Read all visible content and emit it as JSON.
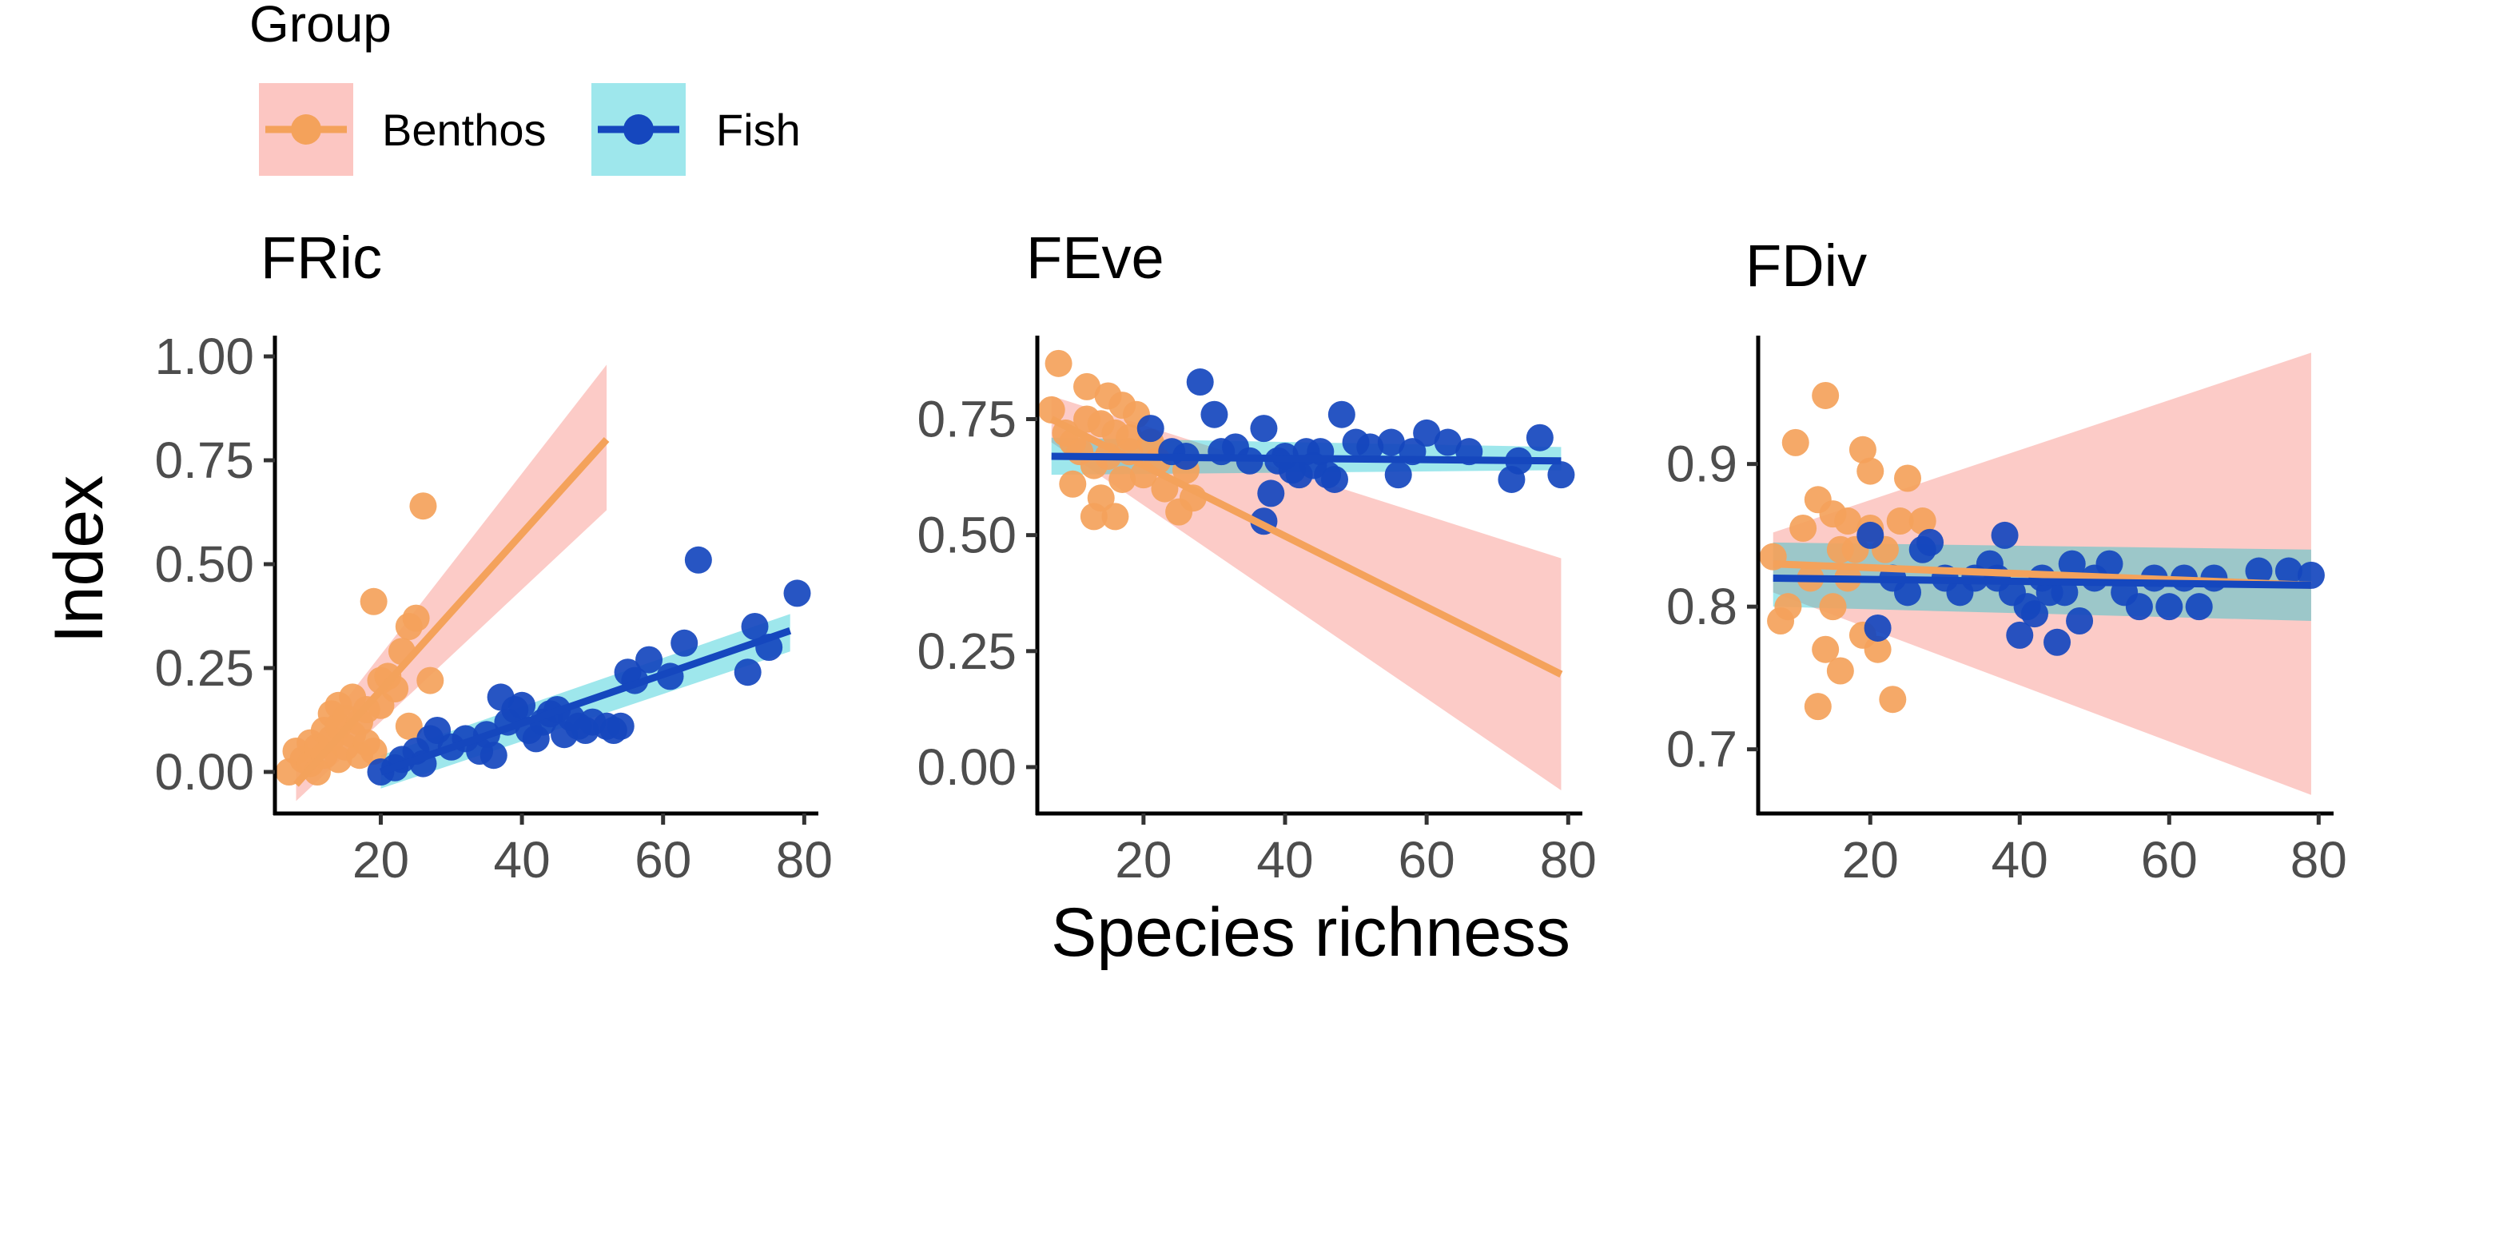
{
  "legend": {
    "title": "Group",
    "entries": [
      {
        "label": "Benthos",
        "point_color": "#F4A25B",
        "band_color": "#F8766D"
      },
      {
        "label": "Fish",
        "point_color": "#1547BE",
        "band_color": "#00C0CC"
      }
    ]
  },
  "axis_titles": {
    "x": "Species richness",
    "y": "Index"
  },
  "chart_data": [
    {
      "type": "scatter",
      "title": "FRic",
      "xlabel": "Species richness",
      "ylabel": "Index",
      "xlim": [
        5,
        82
      ],
      "ylim": [
        -0.1,
        1.05
      ],
      "xticks": [
        "20",
        "40",
        "60",
        "80"
      ],
      "yticks": [
        "0.00",
        "0.25",
        "0.50",
        "0.75",
        "1.00"
      ],
      "xtick_values": [
        20,
        40,
        60,
        80
      ],
      "ytick_values": [
        0,
        0.25,
        0.5,
        0.75,
        1.0
      ],
      "grid": false,
      "series": [
        {
          "name": "Benthos",
          "color": "#F4A25B",
          "band_color": "#F8766D",
          "points": [
            [
              7,
              0.0
            ],
            [
              8,
              0.05
            ],
            [
              9,
              0.03
            ],
            [
              10,
              0.07
            ],
            [
              10,
              0.02
            ],
            [
              11,
              0.0
            ],
            [
              11,
              0.06
            ],
            [
              12,
              0.1
            ],
            [
              12,
              0.04
            ],
            [
              13,
              0.14
            ],
            [
              13,
              0.08
            ],
            [
              14,
              0.11
            ],
            [
              14,
              0.03
            ],
            [
              14,
              0.16
            ],
            [
              15,
              0.13
            ],
            [
              15,
              0.06
            ],
            [
              16,
              0.18
            ],
            [
              16,
              0.09
            ],
            [
              17,
              0.12
            ],
            [
              17,
              0.04
            ],
            [
              18,
              0.15
            ],
            [
              18,
              0.07
            ],
            [
              19,
              0.41
            ],
            [
              19,
              0.05
            ],
            [
              20,
              0.22
            ],
            [
              20,
              0.16
            ],
            [
              21,
              0.23
            ],
            [
              22,
              0.2
            ],
            [
              23,
              0.29
            ],
            [
              24,
              0.35
            ],
            [
              24,
              0.11
            ],
            [
              25,
              0.37
            ],
            [
              26,
              0.64
            ],
            [
              27,
              0.22
            ]
          ],
          "fit": {
            "x": [
              8,
              52
            ],
            "y": [
              -0.03,
              0.8
            ],
            "band_low": [
              -0.07,
              0.63
            ],
            "band_high": [
              0.02,
              0.98
            ]
          }
        },
        {
          "name": "Fish",
          "color": "#1547BE",
          "band_color": "#00C0CC",
          "points": [
            [
              20,
              0.0
            ],
            [
              22,
              0.01
            ],
            [
              23,
              0.03
            ],
            [
              25,
              0.05
            ],
            [
              26,
              0.02
            ],
            [
              27,
              0.08
            ],
            [
              28,
              0.1
            ],
            [
              30,
              0.06
            ],
            [
              32,
              0.08
            ],
            [
              34,
              0.05
            ],
            [
              35,
              0.09
            ],
            [
              36,
              0.04
            ],
            [
              37,
              0.18
            ],
            [
              38,
              0.12
            ],
            [
              39,
              0.15
            ],
            [
              40,
              0.16
            ],
            [
              41,
              0.1
            ],
            [
              42,
              0.08
            ],
            [
              43,
              0.12
            ],
            [
              44,
              0.14
            ],
            [
              45,
              0.15
            ],
            [
              46,
              0.09
            ],
            [
              47,
              0.13
            ],
            [
              48,
              0.11
            ],
            [
              49,
              0.1
            ],
            [
              50,
              0.12
            ],
            [
              52,
              0.11
            ],
            [
              53,
              0.1
            ],
            [
              54,
              0.11
            ],
            [
              55,
              0.24
            ],
            [
              56,
              0.22
            ],
            [
              58,
              0.27
            ],
            [
              61,
              0.23
            ],
            [
              63,
              0.31
            ],
            [
              65,
              0.51
            ],
            [
              72,
              0.24
            ],
            [
              73,
              0.35
            ],
            [
              75,
              0.3
            ],
            [
              79,
              0.43
            ]
          ],
          "fit": {
            "x": [
              20,
              78
            ],
            "y": [
              0.0,
              0.34
            ],
            "band_low": [
              -0.04,
              0.29
            ],
            "band_high": [
              0.04,
              0.38
            ]
          }
        }
      ]
    },
    {
      "type": "scatter",
      "title": "FEve",
      "xlabel": "Species richness",
      "ylabel": "Index",
      "xlim": [
        5,
        82
      ],
      "ylim": [
        -0.1,
        0.93
      ],
      "xticks": [
        "20",
        "40",
        "60",
        "80"
      ],
      "yticks": [
        "0.00",
        "0.25",
        "0.50",
        "0.75"
      ],
      "xtick_values": [
        20,
        40,
        60,
        80
      ],
      "ytick_values": [
        0,
        0.25,
        0.5,
        0.75
      ],
      "grid": false,
      "series": [
        {
          "name": "Benthos",
          "color": "#F4A25B",
          "band_color": "#F8766D",
          "points": [
            [
              7,
              0.77
            ],
            [
              8,
              0.87
            ],
            [
              9,
              0.72
            ],
            [
              10,
              0.61
            ],
            [
              10,
              0.7
            ],
            [
              11,
              0.68
            ],
            [
              12,
              0.75
            ],
            [
              12,
              0.82
            ],
            [
              13,
              0.54
            ],
            [
              13,
              0.65
            ],
            [
              14,
              0.74
            ],
            [
              14,
              0.58
            ],
            [
              15,
              0.8
            ],
            [
              15,
              0.67
            ],
            [
              16,
              0.72
            ],
            [
              16,
              0.54
            ],
            [
              17,
              0.78
            ],
            [
              17,
              0.62
            ],
            [
              18,
              0.71
            ],
            [
              18,
              0.68
            ],
            [
              19,
              0.76
            ],
            [
              20,
              0.63
            ],
            [
              21,
              0.7
            ],
            [
              22,
              0.66
            ],
            [
              23,
              0.6
            ],
            [
              25,
              0.55
            ],
            [
              26,
              0.64
            ],
            [
              27,
              0.58
            ]
          ],
          "fit": {
            "x": [
              7,
              79
            ],
            "y": [
              0.75,
              0.2
            ],
            "band_low": [
              0.7,
              -0.05
            ],
            "band_high": [
              0.8,
              0.45
            ]
          }
        },
        {
          "name": "Fish",
          "color": "#1547BE",
          "band_color": "#00C0CC",
          "points": [
            [
              21,
              0.73
            ],
            [
              24,
              0.68
            ],
            [
              26,
              0.67
            ],
            [
              28,
              0.83
            ],
            [
              30,
              0.76
            ],
            [
              31,
              0.68
            ],
            [
              33,
              0.69
            ],
            [
              35,
              0.66
            ],
            [
              37,
              0.53
            ],
            [
              37,
              0.73
            ],
            [
              38,
              0.59
            ],
            [
              39,
              0.66
            ],
            [
              40,
              0.67
            ],
            [
              41,
              0.64
            ],
            [
              42,
              0.63
            ],
            [
              43,
              0.68
            ],
            [
              44,
              0.65
            ],
            [
              45,
              0.68
            ],
            [
              46,
              0.63
            ],
            [
              47,
              0.62
            ],
            [
              48,
              0.76
            ],
            [
              50,
              0.7
            ],
            [
              52,
              0.69
            ],
            [
              55,
              0.7
            ],
            [
              56,
              0.63
            ],
            [
              58,
              0.68
            ],
            [
              60,
              0.72
            ],
            [
              63,
              0.7
            ],
            [
              66,
              0.68
            ],
            [
              72,
              0.62
            ],
            [
              73,
              0.66
            ],
            [
              76,
              0.71
            ],
            [
              79,
              0.63
            ]
          ],
          "fit": {
            "x": [
              7,
              79
            ],
            "y": [
              0.67,
              0.66
            ],
            "band_low": [
              0.63,
              0.64
            ],
            "band_high": [
              0.71,
              0.69
            ]
          }
        }
      ]
    },
    {
      "type": "scatter",
      "title": "FDiv",
      "xlabel": "Species richness",
      "ylabel": "Index",
      "xlim": [
        5,
        82
      ],
      "ylim": [
        0.655,
        0.99
      ],
      "xticks": [
        "20",
        "40",
        "60",
        "80"
      ],
      "yticks": [
        "0.7",
        "0.8",
        "0.9"
      ],
      "xtick_values": [
        20,
        40,
        60,
        80
      ],
      "ytick_values": [
        0.7,
        0.8,
        0.9
      ],
      "grid": false,
      "series": [
        {
          "name": "Benthos",
          "color": "#F4A25B",
          "band_color": "#F8766D",
          "points": [
            [
              7,
              0.835
            ],
            [
              8,
              0.79
            ],
            [
              9,
              0.8
            ],
            [
              10,
              0.915
            ],
            [
              11,
              0.855
            ],
            [
              12,
              0.82
            ],
            [
              13,
              0.875
            ],
            [
              13,
              0.73
            ],
            [
              14,
              0.948
            ],
            [
              14,
              0.77
            ],
            [
              15,
              0.865
            ],
            [
              15,
              0.8
            ],
            [
              16,
              0.755
            ],
            [
              16,
              0.84
            ],
            [
              17,
              0.86
            ],
            [
              17,
              0.82
            ],
            [
              18,
              0.84
            ],
            [
              19,
              0.91
            ],
            [
              19,
              0.78
            ],
            [
              20,
              0.895
            ],
            [
              20,
              0.855
            ],
            [
              21,
              0.77
            ],
            [
              22,
              0.84
            ],
            [
              23,
              0.735
            ],
            [
              24,
              0.86
            ],
            [
              25,
              0.89
            ],
            [
              27,
              0.86
            ]
          ],
          "fit": {
            "x": [
              7,
              79
            ],
            "y": [
              0.83,
              0.815
            ],
            "band_low": [
              0.81,
              0.668
            ],
            "band_high": [
              0.852,
              0.978
            ]
          }
        },
        {
          "name": "Fish",
          "color": "#1547BE",
          "band_color": "#00C0CC",
          "points": [
            [
              20,
              0.85
            ],
            [
              21,
              0.785
            ],
            [
              23,
              0.82
            ],
            [
              25,
              0.81
            ],
            [
              27,
              0.84
            ],
            [
              28,
              0.845
            ],
            [
              30,
              0.82
            ],
            [
              32,
              0.81
            ],
            [
              34,
              0.82
            ],
            [
              36,
              0.83
            ],
            [
              37,
              0.82
            ],
            [
              38,
              0.85
            ],
            [
              39,
              0.81
            ],
            [
              40,
              0.78
            ],
            [
              41,
              0.8
            ],
            [
              42,
              0.795
            ],
            [
              43,
              0.82
            ],
            [
              44,
              0.81
            ],
            [
              45,
              0.775
            ],
            [
              46,
              0.81
            ],
            [
              47,
              0.83
            ],
            [
              48,
              0.79
            ],
            [
              50,
              0.82
            ],
            [
              52,
              0.83
            ],
            [
              54,
              0.81
            ],
            [
              56,
              0.8
            ],
            [
              58,
              0.82
            ],
            [
              60,
              0.8
            ],
            [
              62,
              0.82
            ],
            [
              64,
              0.8
            ],
            [
              66,
              0.82
            ],
            [
              72,
              0.825
            ],
            [
              76,
              0.825
            ],
            [
              79,
              0.822
            ]
          ],
          "fit": {
            "x": [
              7,
              79
            ],
            "y": [
              0.82,
              0.815
            ],
            "band_low": [
              0.8,
              0.79
            ],
            "band_high": [
              0.845,
              0.84
            ]
          }
        }
      ]
    }
  ]
}
